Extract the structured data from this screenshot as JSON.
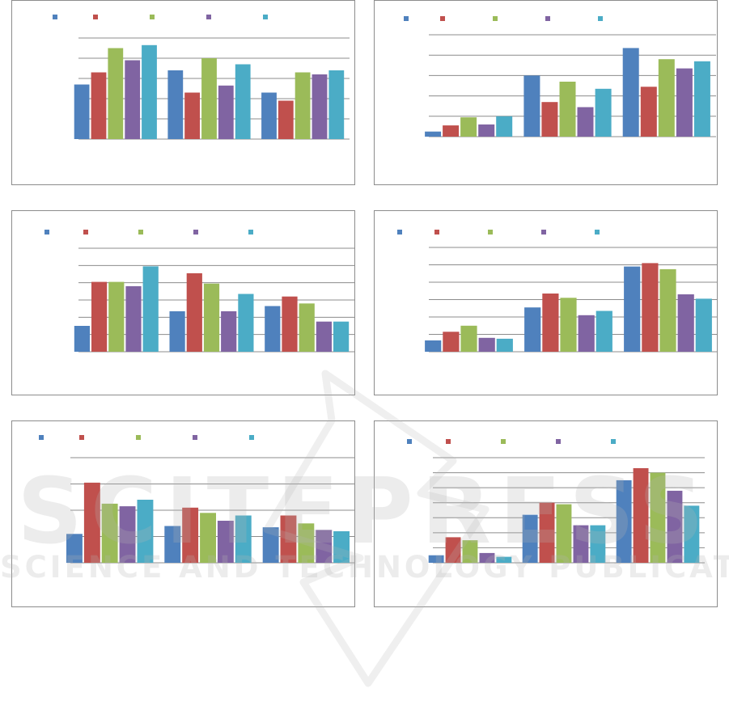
{
  "series_colors": [
    "#4f81bd",
    "#c0504d",
    "#9bbb59",
    "#8064a2",
    "#4bacc6"
  ],
  "watermark": {
    "main": "SCITEPRESS",
    "sub": "SCIENCE AND TECHNOLOGY PUBLICATIONS",
    "color": "#b4b4b4"
  },
  "chart_data": [
    {
      "type": "bar",
      "title": "",
      "xlabel": "",
      "ylabel": "",
      "ylim": [
        0,
        5
      ],
      "grid": true,
      "legend": "top-left",
      "series": [
        {
          "values": [
            2.7,
            3.4,
            2.3
          ]
        },
        {
          "values": [
            3.3,
            2.3,
            1.9
          ]
        },
        {
          "values": [
            4.5,
            4.0,
            3.3
          ]
        },
        {
          "values": [
            3.9,
            2.65,
            3.2
          ]
        },
        {
          "values": [
            4.65,
            3.7,
            3.4
          ]
        }
      ]
    },
    {
      "type": "bar",
      "title": "",
      "xlabel": "",
      "ylabel": "",
      "ylim": [
        0,
        5
      ],
      "grid": true,
      "legend": "top-left",
      "series": [
        {
          "values": [
            0.25,
            3.0,
            4.35
          ]
        },
        {
          "values": [
            0.55,
            1.7,
            2.45
          ]
        },
        {
          "values": [
            0.95,
            2.7,
            3.8
          ]
        },
        {
          "values": [
            0.6,
            1.45,
            3.35
          ]
        },
        {
          "values": [
            1.0,
            2.35,
            3.7
          ]
        }
      ]
    },
    {
      "type": "bar",
      "title": "",
      "xlabel": "",
      "ylabel": "",
      "ylim": [
        0,
        6
      ],
      "grid": true,
      "legend": "top-left",
      "series": [
        {
          "values": [
            1.5,
            2.35,
            2.65
          ]
        },
        {
          "values": [
            4.05,
            4.55,
            3.2
          ]
        },
        {
          "values": [
            4.05,
            3.95,
            2.8
          ]
        },
        {
          "values": [
            3.8,
            2.35,
            1.75
          ]
        },
        {
          "values": [
            4.95,
            3.35,
            1.75
          ]
        }
      ]
    },
    {
      "type": "bar",
      "title": "",
      "xlabel": "",
      "ylabel": "",
      "ylim": [
        0,
        6
      ],
      "grid": true,
      "legend": "top-left",
      "series": [
        {
          "values": [
            0.65,
            2.55,
            4.9
          ]
        },
        {
          "values": [
            1.15,
            3.35,
            5.1
          ]
        },
        {
          "values": [
            1.5,
            3.1,
            4.75
          ]
        },
        {
          "values": [
            0.8,
            2.1,
            3.3
          ]
        },
        {
          "values": [
            0.75,
            2.35,
            3.05
          ]
        }
      ]
    },
    {
      "type": "bar",
      "title": "",
      "xlabel": "",
      "ylabel": "",
      "ylim": [
        0,
        4
      ],
      "grid": true,
      "legend": "top-left",
      "series": [
        {
          "values": [
            1.1,
            1.4,
            1.35
          ]
        },
        {
          "values": [
            3.05,
            2.1,
            1.8
          ]
        },
        {
          "values": [
            2.25,
            1.9,
            1.5
          ]
        },
        {
          "values": [
            2.15,
            1.6,
            1.25
          ]
        },
        {
          "values": [
            2.4,
            1.8,
            1.2
          ]
        }
      ]
    },
    {
      "type": "bar",
      "title": "",
      "xlabel": "",
      "ylabel": "",
      "ylim": [
        0,
        7
      ],
      "grid": true,
      "legend": "top-left",
      "series": [
        {
          "values": [
            0.5,
            3.2,
            5.5
          ]
        },
        {
          "values": [
            1.7,
            4.0,
            6.3
          ]
        },
        {
          "values": [
            1.5,
            3.9,
            6.0
          ]
        },
        {
          "values": [
            0.65,
            2.5,
            4.8
          ]
        },
        {
          "values": [
            0.4,
            2.5,
            3.8
          ]
        }
      ]
    }
  ]
}
